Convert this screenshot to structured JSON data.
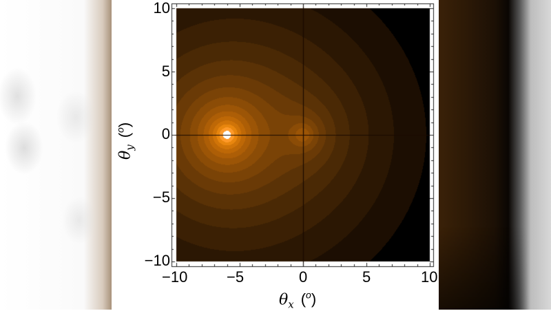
{
  "background": {
    "left_panel": "blurred white/gray letterbox",
    "right_panel": "blurred dark brown letterbox"
  },
  "chart_data": {
    "type": "heatmap",
    "subtype": "filled-contour",
    "title": "",
    "xlabel": {
      "symbol": "θ",
      "subscript": "x",
      "unit_open": "(",
      "unit": "o",
      "unit_close": ")"
    },
    "ylabel": {
      "symbol": "θ",
      "subscript": "y",
      "unit_open": "(",
      "unit": "o",
      "unit_close": ")"
    },
    "xlim": [
      -10,
      10
    ],
    "ylim": [
      -10,
      10
    ],
    "xticks": [
      -10,
      -5,
      0,
      5,
      10
    ],
    "yticks": [
      -10,
      -5,
      0,
      5,
      10
    ],
    "xtick_labels": [
      "−10",
      "−5",
      "0",
      "5",
      "10"
    ],
    "ytick_labels": [
      "−10",
      "−5",
      "0",
      "5",
      "10"
    ],
    "minor_tick_step": 1,
    "grid": false,
    "legend": null,
    "reference_lines": {
      "x": 0,
      "y": 0,
      "color": "#1a0a00"
    },
    "sources": [
      {
        "x": -6.0,
        "y": 0.0,
        "strength": 1.0,
        "label": "primary peak (white)"
      },
      {
        "x": 0.0,
        "y": 0.0,
        "strength": 0.18,
        "label": "secondary peak"
      }
    ],
    "contour_levels": 14,
    "colormap": [
      "#000000",
      "#1c0e02",
      "#2b1703",
      "#3b2004",
      "#4a2905",
      "#5a3206",
      "#6a3a06",
      "#7a4306",
      "#8b4c06",
      "#9c5506",
      "#ad5e06",
      "#be6806",
      "#d07408",
      "#e8860e",
      "#ff9a2a",
      "#ffffff"
    ],
    "approx_contour_crossings_on_x_axis_right": [
      1.2,
      2.4,
      4.4,
      6.0,
      8.0
    ]
  }
}
